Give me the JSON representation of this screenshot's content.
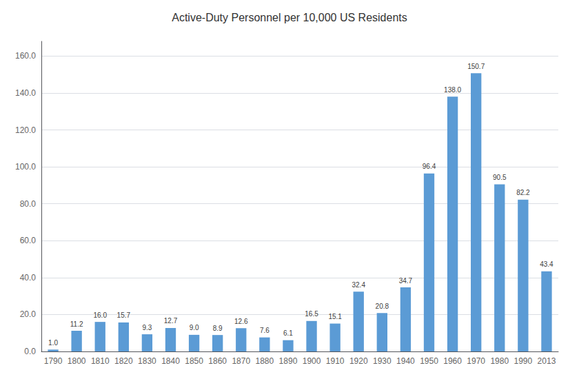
{
  "chart_data": {
    "type": "bar",
    "title": "Active-Duty Personnel per 10,000 US Residents",
    "categories": [
      "1790",
      "1800",
      "1810",
      "1820",
      "1830",
      "1840",
      "1850",
      "1860",
      "1870",
      "1880",
      "1890",
      "1900",
      "1910",
      "1920",
      "1930",
      "1940",
      "1950",
      "1960",
      "1970",
      "1980",
      "1990",
      "2013"
    ],
    "values": [
      1.0,
      11.2,
      16.0,
      15.7,
      9.3,
      12.7,
      9.0,
      8.9,
      12.6,
      7.6,
      6.1,
      16.5,
      15.1,
      32.4,
      20.8,
      34.7,
      96.4,
      138.0,
      150.7,
      90.5,
      82.2,
      43.4
    ],
    "value_labels": [
      "1.0",
      "11.2",
      "16.0",
      "15.7",
      "9.3",
      "12.7",
      "9.0",
      "8.9",
      "12.6",
      "7.6",
      "6.1",
      "16.5",
      "15.1",
      "32.4",
      "20.8",
      "34.7",
      "96.4",
      "138.0",
      "150.7",
      "90.5",
      "82.2",
      "43.4"
    ],
    "color": "#5b9bd5",
    "ylim": [
      0,
      168
    ],
    "yticks": [
      {
        "value": 0,
        "label": "0.0"
      },
      {
        "value": 20,
        "label": "20.0"
      },
      {
        "value": 40,
        "label": "40.0"
      },
      {
        "value": 60,
        "label": "60.0"
      },
      {
        "value": 80,
        "label": "80.0"
      },
      {
        "value": 100,
        "label": "100.0"
      },
      {
        "value": 120,
        "label": "120.0"
      },
      {
        "value": 140,
        "label": "140.0"
      },
      {
        "value": 160,
        "label": "160.0"
      }
    ],
    "grid": true,
    "data_labels": true
  }
}
